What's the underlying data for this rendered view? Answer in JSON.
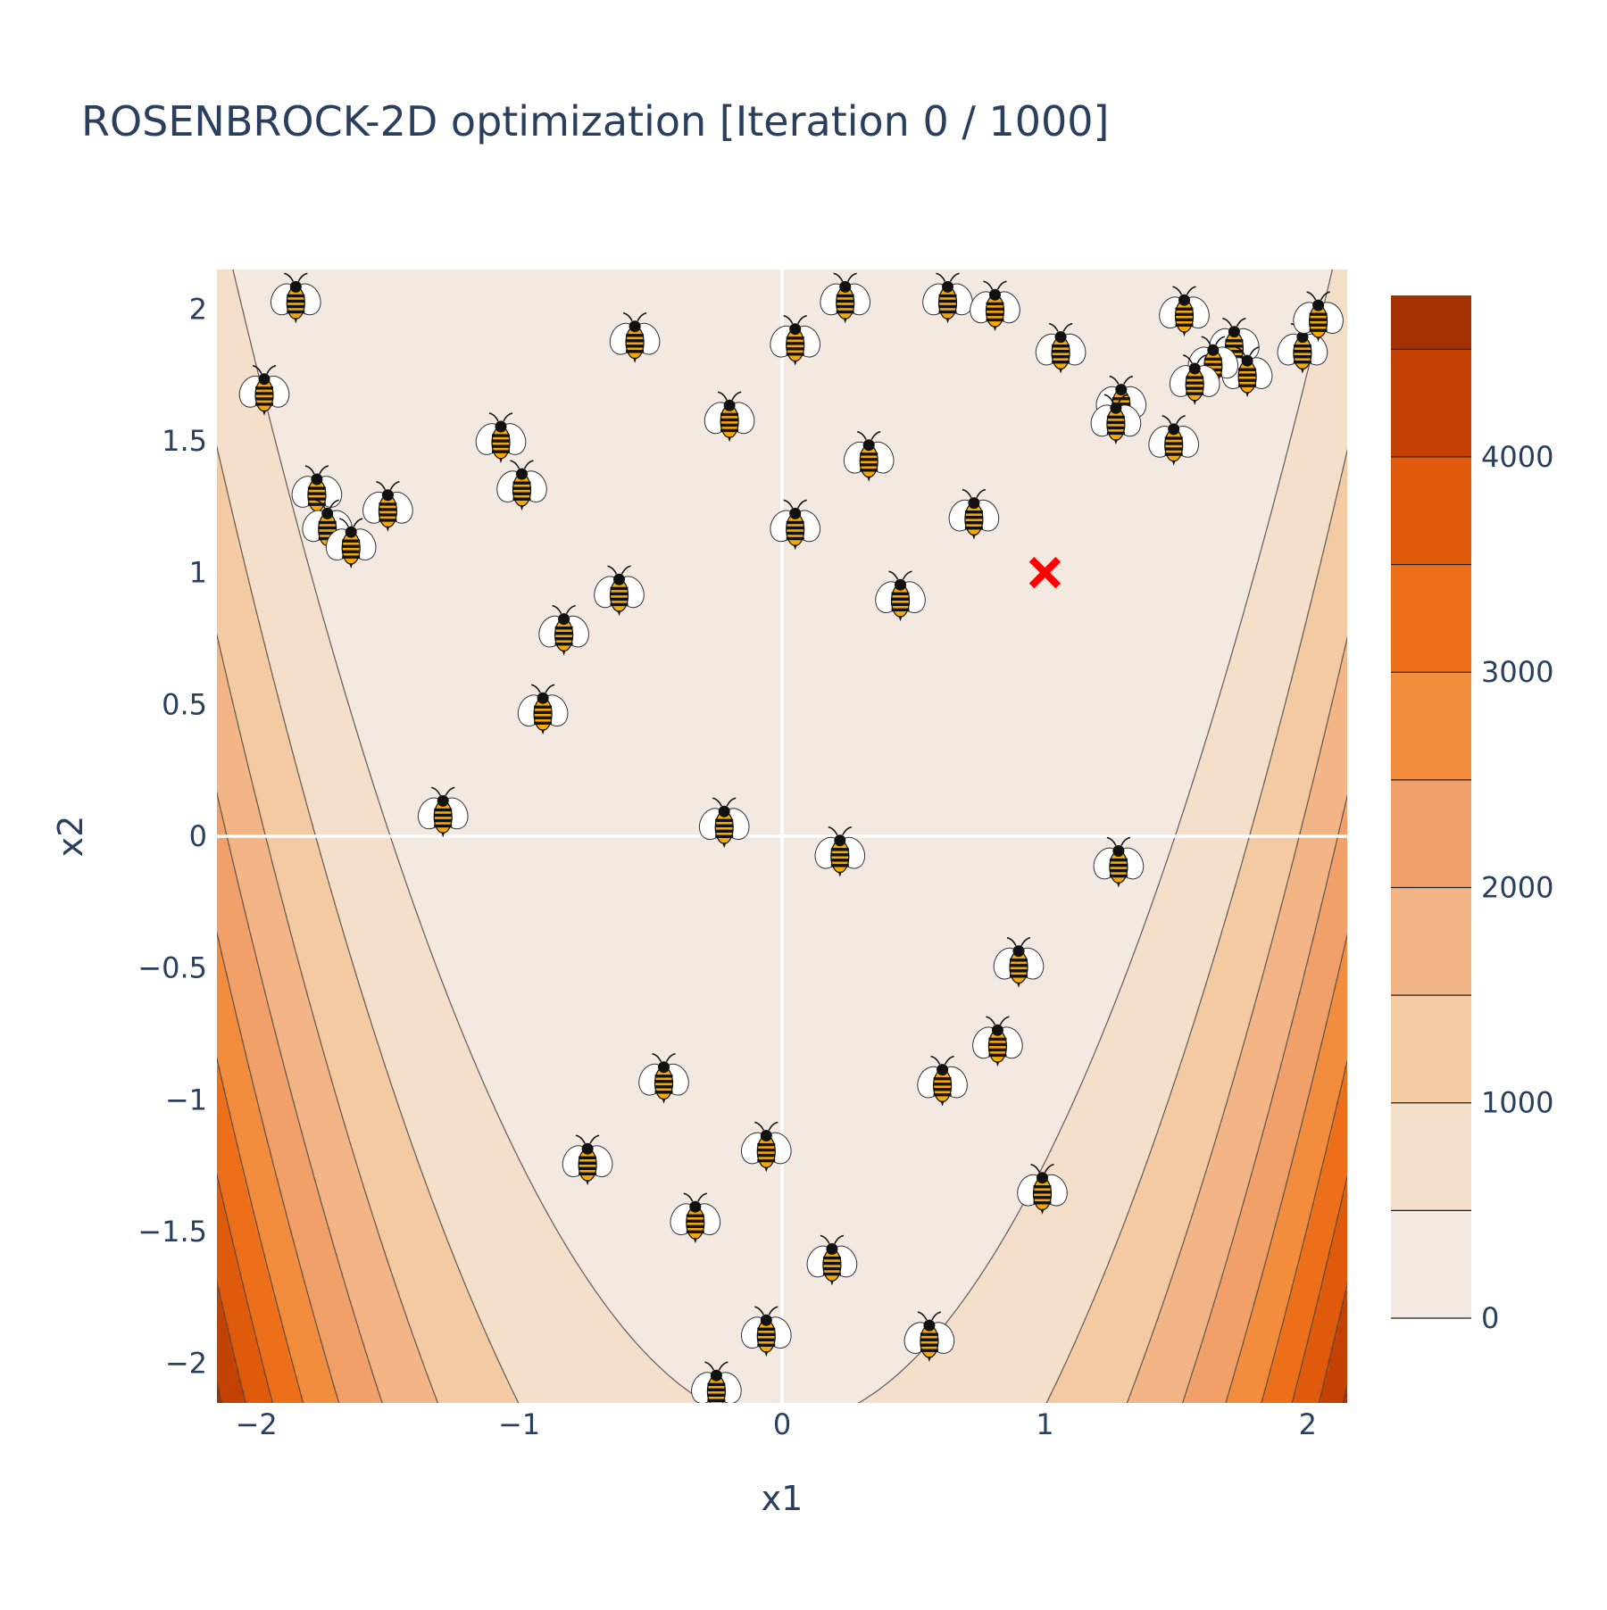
{
  "chart_data": {
    "type": "contour",
    "title": "ROSENBROCK-2D optimization [Iteration 0 / 1000]",
    "xlabel": "x1",
    "ylabel": "x2",
    "xlim": [
      -2.15,
      2.15
    ],
    "ylim": [
      -2.15,
      2.15
    ],
    "xticks": [
      -2,
      -1,
      0,
      1,
      2
    ],
    "yticks": [
      -2,
      -1.5,
      -1,
      -0.5,
      0,
      0.5,
      1,
      1.5,
      2
    ],
    "xtick_labels": [
      "−2",
      "−1",
      "0",
      "1",
      "2"
    ],
    "ytick_labels": [
      "−2",
      "−1.5",
      "−1",
      "−0.5",
      "0",
      "0.5",
      "1",
      "1.5",
      "2"
    ],
    "zero_lines": true,
    "function": "rosenbrock",
    "contour_levels": [
      0,
      500,
      1000,
      1500,
      2000,
      2500,
      3000,
      3500,
      4000,
      4500,
      4750
    ],
    "colorbar": {
      "ticks": [
        0,
        1000,
        2000,
        3000,
        4000
      ],
      "tick_labels": [
        "0",
        "1000",
        "2000",
        "3000",
        "4000"
      ],
      "range": [
        0,
        4750
      ],
      "placement": "right"
    },
    "colorscale": [
      "#f3e9e0",
      "#f3dfca",
      "#f3caa2",
      "#f3b585",
      "#f1a06a",
      "#f18d3c",
      "#ee6f1a",
      "#e05a0b",
      "#c44104",
      "#a33103",
      "#7f2104"
    ],
    "optimum": {
      "x": 1,
      "y": 1,
      "marker": "x",
      "color": "#ff0000"
    },
    "particles": [
      {
        "x": -1.85,
        "y": 2.03
      },
      {
        "x": -1.97,
        "y": 1.68
      },
      {
        "x": -1.77,
        "y": 1.3
      },
      {
        "x": -1.73,
        "y": 1.17
      },
      {
        "x": -1.64,
        "y": 1.1
      },
      {
        "x": -1.5,
        "y": 1.24
      },
      {
        "x": -1.07,
        "y": 1.5
      },
      {
        "x": -0.99,
        "y": 1.32
      },
      {
        "x": -0.56,
        "y": 1.88
      },
      {
        "x": -0.2,
        "y": 1.58
      },
      {
        "x": -0.62,
        "y": 0.92
      },
      {
        "x": -0.83,
        "y": 0.77
      },
      {
        "x": -0.91,
        "y": 0.47
      },
      {
        "x": -1.29,
        "y": 0.08
      },
      {
        "x": -0.22,
        "y": 0.04
      },
      {
        "x": 0.05,
        "y": 1.87
      },
      {
        "x": 0.24,
        "y": 2.03
      },
      {
        "x": 0.63,
        "y": 2.03
      },
      {
        "x": 0.81,
        "y": 2.0
      },
      {
        "x": 1.06,
        "y": 1.84
      },
      {
        "x": 0.33,
        "y": 1.43
      },
      {
        "x": 0.05,
        "y": 1.17
      },
      {
        "x": 0.73,
        "y": 1.21
      },
      {
        "x": 0.45,
        "y": 0.9
      },
      {
        "x": 1.53,
        "y": 1.98
      },
      {
        "x": 1.72,
        "y": 1.86
      },
      {
        "x": 1.77,
        "y": 1.75
      },
      {
        "x": 1.64,
        "y": 1.79
      },
      {
        "x": 1.57,
        "y": 1.72
      },
      {
        "x": 1.29,
        "y": 1.64
      },
      {
        "x": 1.27,
        "y": 1.57
      },
      {
        "x": 1.49,
        "y": 1.49
      },
      {
        "x": 1.98,
        "y": 1.84
      },
      {
        "x": 2.04,
        "y": 1.96
      },
      {
        "x": 0.22,
        "y": -0.07
      },
      {
        "x": 1.28,
        "y": -0.11
      },
      {
        "x": 0.9,
        "y": -0.49
      },
      {
        "x": 0.82,
        "y": -0.79
      },
      {
        "x": 0.61,
        "y": -0.94
      },
      {
        "x": 0.99,
        "y": -1.35
      },
      {
        "x": -0.45,
        "y": -0.93
      },
      {
        "x": -0.74,
        "y": -1.24
      },
      {
        "x": -0.06,
        "y": -1.19
      },
      {
        "x": -0.33,
        "y": -1.46
      },
      {
        "x": 0.19,
        "y": -1.62
      },
      {
        "x": -0.06,
        "y": -1.89
      },
      {
        "x": 0.56,
        "y": -1.91
      },
      {
        "x": -0.25,
        "y": -2.1
      }
    ]
  }
}
